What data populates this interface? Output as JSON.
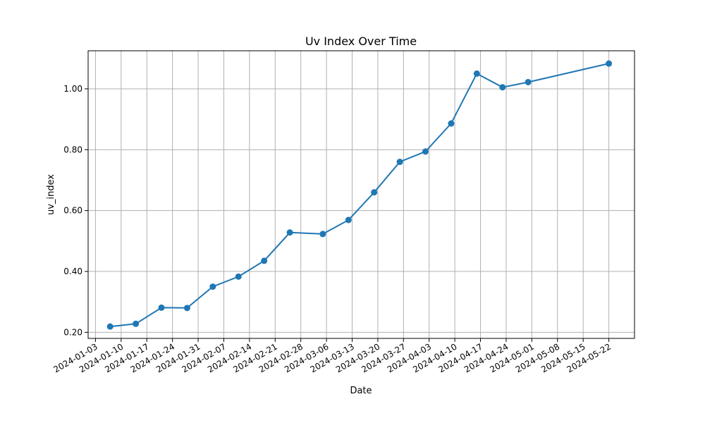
{
  "chart_data": {
    "type": "line",
    "title": "Uv Index Over Time",
    "xlabel": "Date",
    "ylabel": "uv_index",
    "xlim": [
      "2024-01-01",
      "2024-05-29"
    ],
    "ylim": [
      0.18,
      1.125
    ],
    "grid": true,
    "x_tick_labels": [
      "2024-01-03",
      "2024-01-10",
      "2024-01-17",
      "2024-01-24",
      "2024-01-31",
      "2024-02-07",
      "2024-02-14",
      "2024-02-21",
      "2024-02-28",
      "2024-03-06",
      "2024-03-13",
      "2024-03-20",
      "2024-03-27",
      "2024-04-03",
      "2024-04-10",
      "2024-04-17",
      "2024-04-24",
      "2024-05-01",
      "2024-05-08",
      "2024-05-15",
      "2024-05-22"
    ],
    "y_tick_labels": [
      "0.20",
      "0.40",
      "0.60",
      "0.80",
      "1.00"
    ],
    "y_tick_values": [
      0.2,
      0.4,
      0.6,
      0.8,
      1.0
    ],
    "series": [
      {
        "color": "#1f77b4",
        "x": [
          "2024-01-07",
          "2024-01-14",
          "2024-01-21",
          "2024-01-28",
          "2024-02-04",
          "2024-02-11",
          "2024-02-18",
          "2024-02-25",
          "2024-03-05",
          "2024-03-12",
          "2024-03-19",
          "2024-03-26",
          "2024-04-02",
          "2024-04-09",
          "2024-04-16",
          "2024-04-23",
          "2024-04-30",
          "2024-05-22"
        ],
        "y": [
          0.219,
          0.228,
          0.281,
          0.28,
          0.35,
          0.383,
          0.435,
          0.528,
          0.523,
          0.569,
          0.66,
          0.76,
          0.794,
          0.886,
          1.05,
          1.005,
          1.022,
          1.083
        ]
      }
    ]
  }
}
